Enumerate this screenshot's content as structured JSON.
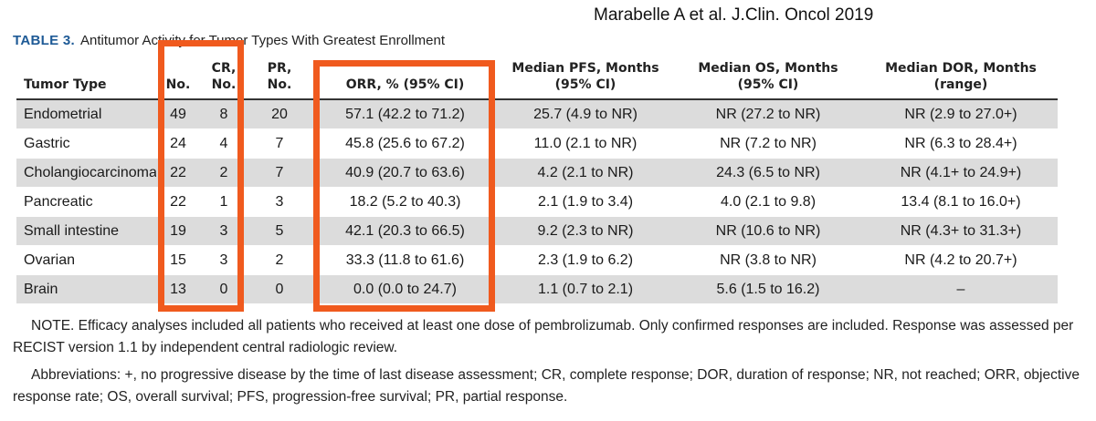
{
  "citation": "Marabelle A et al. J.Clin. Oncol 2019",
  "caption": {
    "label": "TABLE 3.",
    "text": "Antitumor Activity for Tumor Types With Greatest Enrollment"
  },
  "table": {
    "headers": {
      "tumor_type": "Tumor Type",
      "no": "No.",
      "cr_line1": "CR,",
      "cr_line2": "No.",
      "pr_line1": "PR,",
      "pr_line2": "No.",
      "orr": "ORR, % (95% CI)",
      "pfs_line1": "Median PFS, Months",
      "pfs_line2": "(95% CI)",
      "os_line1": "Median OS, Months",
      "os_line2": "(95% CI)",
      "dor_line1": "Median DOR, Months",
      "dor_line2": "(range)"
    },
    "rows": [
      {
        "type": "Endometrial",
        "no": "49",
        "cr": "8",
        "pr": "20",
        "orr": "57.1 (42.2 to 71.2)",
        "pfs": "25.7 (4.9 to NR)",
        "os": "NR (27.2 to NR)",
        "dor": "NR (2.9 to 27.0+)"
      },
      {
        "type": "Gastric",
        "no": "24",
        "cr": "4",
        "pr": "7",
        "orr": "45.8 (25.6 to 67.2)",
        "pfs": "11.0 (2.1 to NR)",
        "os": "NR (7.2 to NR)",
        "dor": "NR (6.3 to 28.4+)"
      },
      {
        "type": "Cholangiocarcinoma",
        "no": "22",
        "cr": "2",
        "pr": "7",
        "orr": "40.9 (20.7 to 63.6)",
        "pfs": "4.2 (2.1 to NR)",
        "os": "24.3 (6.5 to NR)",
        "dor": "NR (4.1+ to 24.9+)"
      },
      {
        "type": "Pancreatic",
        "no": "22",
        "cr": "1",
        "pr": "3",
        "orr": "18.2 (5.2 to 40.3)",
        "pfs": "2.1 (1.9 to 3.4)",
        "os": "4.0 (2.1 to 9.8)",
        "dor": "13.4 (8.1 to 16.0+)"
      },
      {
        "type": "Small intestine",
        "no": "19",
        "cr": "3",
        "pr": "5",
        "orr": "42.1 (20.3 to 66.5)",
        "pfs": "9.2 (2.3 to NR)",
        "os": "NR (10.6 to NR)",
        "dor": "NR (4.3+ to 31.3+)"
      },
      {
        "type": "Ovarian",
        "no": "15",
        "cr": "3",
        "pr": "2",
        "orr": "33.3 (11.8 to 61.6)",
        "pfs": "2.3 (1.9 to 6.2)",
        "os": "NR (3.8 to NR)",
        "dor": "NR (4.2 to 20.7+)"
      },
      {
        "type": "Brain",
        "no": "13",
        "cr": "0",
        "pr": "0",
        "orr": "0.0 (0.0 to 24.7)",
        "pfs": "1.1 (0.7 to 2.1)",
        "os": "5.6 (1.5 to 16.2)",
        "dor": "–"
      }
    ]
  },
  "notes": {
    "note": "NOTE. Efficacy analyses included all patients who received at least one dose of pembrolizumab. Only confirmed responses are included. Response was assessed per RECIST version 1.1 by independent central radiologic review.",
    "abbreviations": "Abbreviations: +, no progressive disease by the time of last disease assessment; CR, complete response; DOR, duration of response; NR, not reached; ORR, objective response rate; OS, overall survival; PFS, progression-free survival; PR, partial response."
  },
  "colors": {
    "highlight": "#f05a1e",
    "caption_label": "#1e5a96",
    "row_shade": "#dcdcdc"
  }
}
